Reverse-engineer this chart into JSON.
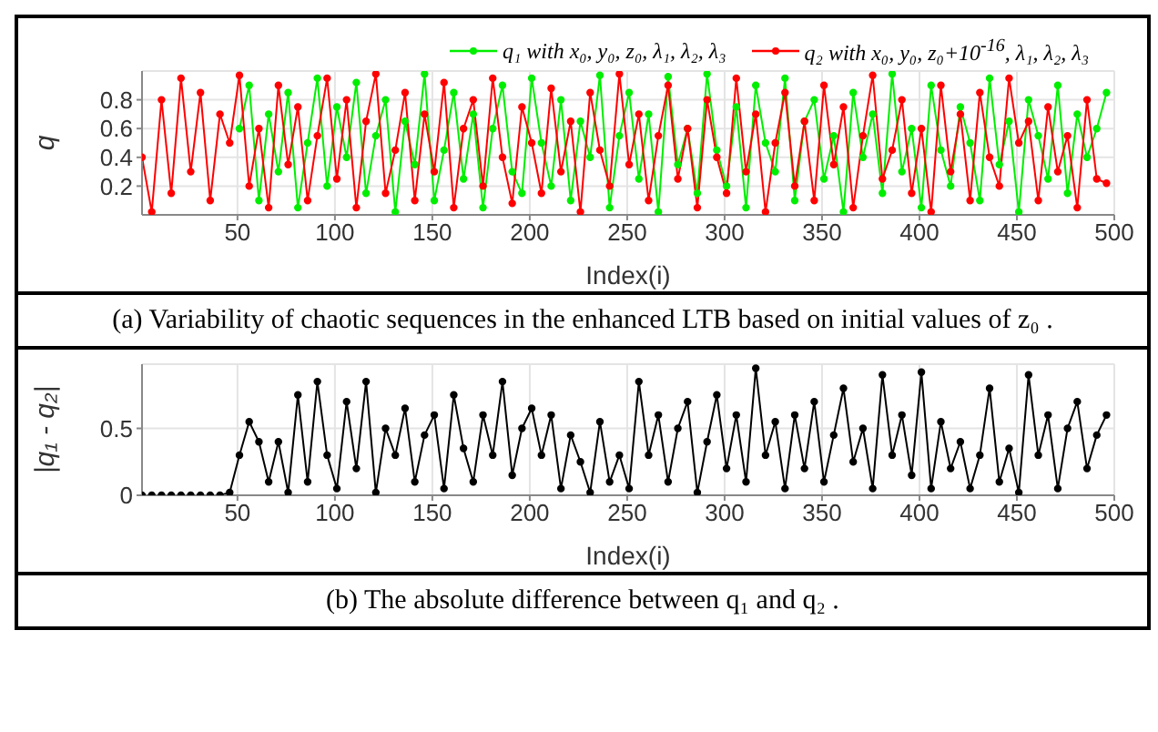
{
  "chart_data": [
    {
      "type": "line",
      "xlabel": "Index(i)",
      "ylabel": "q",
      "legend": "top right",
      "grid": true,
      "marker": "circle",
      "line_style": "solid",
      "x": [
        1,
        6,
        11,
        16,
        21,
        26,
        31,
        36,
        41,
        46,
        51,
        56,
        61,
        66,
        71,
        76,
        81,
        86,
        91,
        96,
        101,
        106,
        111,
        116,
        121,
        126,
        131,
        136,
        141,
        146,
        151,
        156,
        161,
        166,
        171,
        176,
        181,
        186,
        191,
        196,
        201,
        206,
        211,
        216,
        221,
        226,
        231,
        236,
        241,
        246,
        251,
        256,
        261,
        266,
        271,
        276,
        281,
        286,
        291,
        296,
        301,
        306,
        311,
        316,
        321,
        326,
        331,
        336,
        341,
        346,
        351,
        356,
        361,
        366,
        371,
        376,
        381,
        386,
        391,
        396,
        401,
        406,
        411,
        416,
        421,
        426,
        431,
        436,
        441,
        446,
        451,
        456,
        461,
        466,
        471,
        476,
        481,
        486,
        491,
        496
      ],
      "xlim": [
        1,
        500
      ],
      "xticks": [
        50,
        100,
        150,
        200,
        250,
        300,
        350,
        400,
        450,
        500
      ],
      "ylim": [
        0,
        1
      ],
      "yticks": [
        0.2,
        0.4,
        0.6,
        0.8
      ],
      "annotations": [
        "(a) Variability of chaotic sequences in the enhanced LTB based on initial values of z₀ ."
      ],
      "series": [
        {
          "name": "q₁ with x₀, y₀, z₀, λ₁, λ₂, λ₃",
          "color": "#00ee00",
          "values": [
            null,
            null,
            null,
            null,
            null,
            null,
            null,
            null,
            null,
            null,
            0.6,
            0.9,
            0.1,
            0.7,
            0.3,
            0.85,
            0.05,
            0.5,
            0.95,
            0.2,
            0.75,
            0.4,
            0.92,
            0.15,
            0.55,
            0.8,
            0.02,
            0.65,
            0.35,
            0.98,
            0.1,
            0.45,
            0.85,
            0.25,
            0.7,
            0.05,
            0.6,
            0.9,
            0.3,
            0.15,
            0.95,
            0.5,
            0.2,
            0.8,
            0.1,
            0.65,
            0.4,
            0.97,
            0.05,
            0.55,
            0.85,
            0.25,
            0.7,
            0.02,
            0.96,
            0.35,
            0.6,
            0.15,
            0.98,
            0.45,
            0.2,
            0.75,
            0.05,
            0.9,
            0.5,
            0.3,
            0.95,
            0.1,
            0.65,
            0.8,
            0.25,
            0.55,
            0.02,
            0.85,
            0.4,
            0.7,
            0.15,
            0.98,
            0.3,
            0.6,
            0.05,
            0.9,
            0.45,
            0.2,
            0.75,
            0.5,
            0.1,
            0.95,
            0.35,
            0.65,
            0.02,
            0.8,
            0.55,
            0.25,
            0.9,
            0.15,
            0.7,
            0.4,
            0.6,
            0.85
          ]
        },
        {
          "name": "q₂ with x₀, y₀, z₀+10$^{-16}$, λ₁, λ₂, λ₃",
          "color": "#ff0000",
          "values": [
            0.4,
            0.02,
            0.8,
            0.15,
            0.95,
            0.3,
            0.85,
            0.1,
            0.7,
            0.5,
            0.97,
            0.2,
            0.6,
            0.05,
            0.9,
            0.35,
            0.75,
            0.1,
            0.55,
            0.95,
            0.25,
            0.8,
            0.05,
            0.65,
            0.98,
            0.15,
            0.45,
            0.85,
            0.1,
            0.7,
            0.3,
            0.92,
            0.05,
            0.6,
            0.8,
            0.2,
            0.95,
            0.4,
            0.08,
            0.75,
            0.5,
            0.15,
            0.88,
            0.3,
            0.65,
            0.02,
            0.85,
            0.45,
            0.2,
            0.98,
            0.35,
            0.7,
            0.1,
            0.55,
            0.9,
            0.25,
            0.6,
            0.05,
            0.8,
            0.4,
            0.15,
            0.95,
            0.3,
            0.7,
            0.02,
            0.5,
            0.85,
            0.2,
            0.65,
            0.1,
            0.9,
            0.35,
            0.75,
            0.05,
            0.55,
            0.97,
            0.25,
            0.45,
            0.8,
            0.15,
            0.6,
            0.02,
            0.9,
            0.3,
            0.7,
            0.1,
            0.85,
            0.4,
            0.2,
            0.95,
            0.5,
            0.65,
            0.1,
            0.75,
            0.3,
            0.55,
            0.05,
            0.8,
            0.25,
            0.22
          ]
        }
      ]
    },
    {
      "type": "line",
      "xlabel": "Index(i)",
      "ylabel": "|q₁ - q₂|",
      "grid": true,
      "marker": "circle",
      "line_style": "solid",
      "x": [
        1,
        6,
        11,
        16,
        21,
        26,
        31,
        36,
        41,
        46,
        51,
        56,
        61,
        66,
        71,
        76,
        81,
        86,
        91,
        96,
        101,
        106,
        111,
        116,
        121,
        126,
        131,
        136,
        141,
        146,
        151,
        156,
        161,
        166,
        171,
        176,
        181,
        186,
        191,
        196,
        201,
        206,
        211,
        216,
        221,
        226,
        231,
        236,
        241,
        246,
        251,
        256,
        261,
        266,
        271,
        276,
        281,
        286,
        291,
        296,
        301,
        306,
        311,
        316,
        321,
        326,
        331,
        336,
        341,
        346,
        351,
        356,
        361,
        366,
        371,
        376,
        381,
        386,
        391,
        396,
        401,
        406,
        411,
        416,
        421,
        426,
        431,
        436,
        441,
        446,
        451,
        456,
        461,
        466,
        471,
        476,
        481,
        486,
        491,
        496
      ],
      "xlim": [
        1,
        500
      ],
      "xticks": [
        50,
        100,
        150,
        200,
        250,
        300,
        350,
        400,
        450,
        500
      ],
      "ylim": [
        0,
        0.98
      ],
      "yticks": [
        0,
        0.5
      ],
      "annotations": [
        "(b) The absolute difference between q₁ and q₂ ."
      ],
      "series": [
        {
          "color": "#000000",
          "values": [
            0,
            0,
            0,
            0,
            0,
            0,
            0,
            0,
            0,
            0.02,
            0.3,
            0.55,
            0.4,
            0.1,
            0.4,
            0.02,
            0.75,
            0.1,
            0.85,
            0.3,
            0.05,
            0.7,
            0.2,
            0.85,
            0.02,
            0.5,
            0.3,
            0.65,
            0.1,
            0.45,
            0.6,
            0.05,
            0.75,
            0.35,
            0.1,
            0.6,
            0.3,
            0.85,
            0.15,
            0.5,
            0.65,
            0.3,
            0.6,
            0.05,
            0.45,
            0.25,
            0.02,
            0.55,
            0.1,
            0.3,
            0.05,
            0.85,
            0.3,
            0.6,
            0.1,
            0.5,
            0.7,
            0.02,
            0.4,
            0.75,
            0.2,
            0.6,
            0.1,
            0.95,
            0.3,
            0.55,
            0.05,
            0.6,
            0.2,
            0.7,
            0.1,
            0.45,
            0.8,
            0.25,
            0.5,
            0.05,
            0.9,
            0.3,
            0.6,
            0.15,
            0.92,
            0.05,
            0.55,
            0.2,
            0.4,
            0.05,
            0.3,
            0.8,
            0.1,
            0.35,
            0.02,
            0.9,
            0.3,
            0.6,
            0.05,
            0.5,
            0.7,
            0.2,
            0.45,
            0.6
          ]
        }
      ]
    }
  ]
}
